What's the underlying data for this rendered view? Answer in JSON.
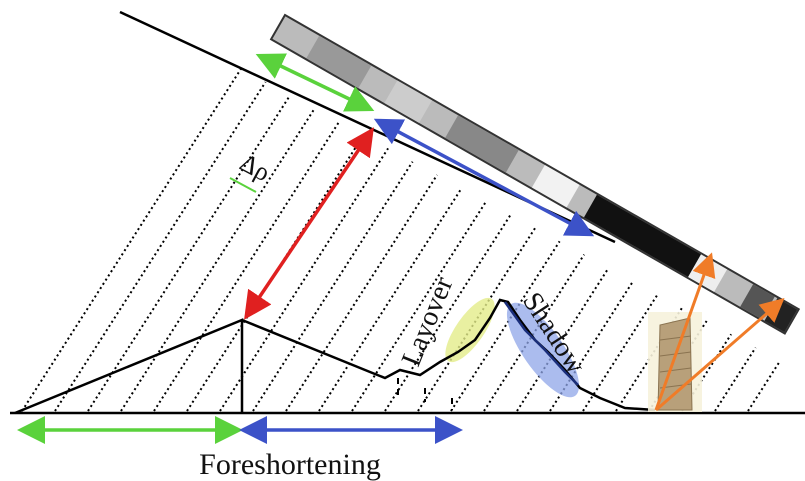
{
  "labels": {
    "delta_rho": "Δρ",
    "layover": "Layover",
    "shadow": "Shadow",
    "foreshortening": "Foreshortening"
  }
}
